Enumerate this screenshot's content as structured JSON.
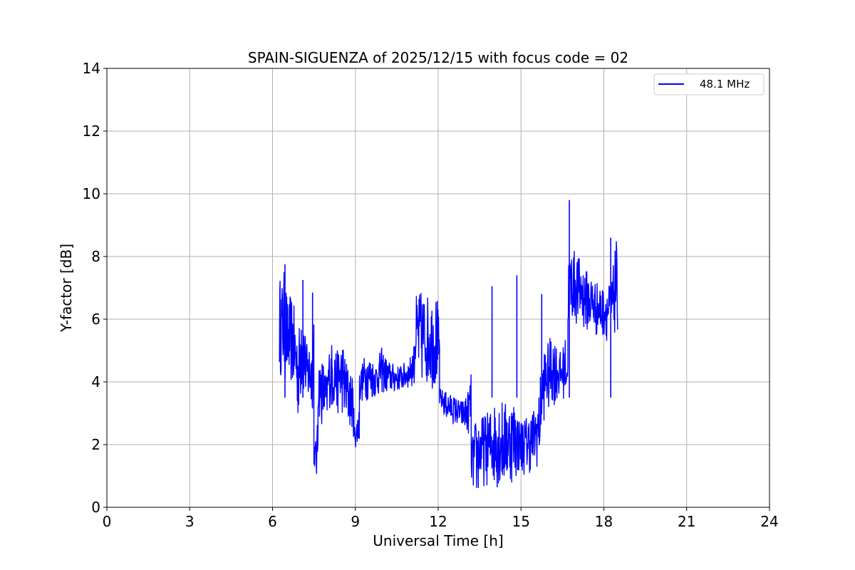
{
  "chart_data": {
    "type": "line",
    "title": "SPAIN-SIGUENZA of 2025/12/15 with focus code = 02",
    "xlabel": "Universal Time [h]",
    "ylabel": "Y-factor [dB]",
    "xlim": [
      0,
      24
    ],
    "ylim": [
      0,
      14
    ],
    "x_ticks": [
      0,
      3,
      6,
      9,
      12,
      15,
      18,
      21,
      24
    ],
    "y_ticks": [
      0,
      2,
      4,
      6,
      8,
      10,
      12,
      14
    ],
    "grid": true,
    "legend_position": "top-right",
    "series": [
      {
        "name": "48.1 MHz",
        "color": "#0000ff",
        "segments": [
          {
            "x": [
              6.25,
              6.35,
              6.45,
              6.55,
              6.65,
              6.75,
              6.85,
              6.95,
              7.05,
              7.15,
              7.25,
              7.35,
              7.45,
              7.5
            ],
            "low": [
              4.2,
              4.1,
              3.9,
              3.8,
              3.9,
              3.6,
              3.2,
              2.6,
              3.4,
              3.5,
              3.2,
              3.0,
              3.1,
              3.3
            ],
            "high": [
              7.4,
              7.2,
              7.7,
              6.5,
              6.8,
              6.6,
              6.0,
              5.5,
              7.3,
              5.9,
              5.2,
              5.4,
              5.1,
              6.9
            ]
          },
          {
            "x": [
              7.5,
              7.55,
              7.6,
              7.65
            ],
            "low": [
              1.3,
              1.2,
              0.7,
              1.4
            ],
            "high": [
              2.0,
              2.1,
              2.4,
              3.0
            ]
          },
          {
            "x": [
              7.65,
              7.75,
              7.85,
              7.95,
              8.05,
              8.15,
              8.25,
              8.35,
              8.45,
              8.55,
              8.65,
              8.75,
              8.85,
              8.95
            ],
            "low": [
              3.0,
              2.6,
              2.5,
              2.4,
              3.2,
              3.0,
              3.1,
              2.9,
              3.0,
              2.9,
              2.5,
              2.4,
              2.5,
              2.2
            ],
            "high": [
              4.6,
              4.8,
              4.7,
              4.2,
              5.1,
              5.3,
              5.2,
              5.0,
              5.2,
              5.3,
              4.8,
              4.5,
              4.3,
              3.9
            ]
          },
          {
            "x": [
              8.95,
              9.05,
              9.15
            ],
            "low": [
              1.9,
              1.85,
              2.0
            ],
            "high": [
              2.6,
              2.8,
              3.6
            ]
          },
          {
            "x": [
              9.15,
              9.35,
              9.55,
              9.75,
              9.95,
              10.15,
              10.35,
              10.55,
              10.75,
              10.95,
              11.15
            ],
            "low": [
              3.3,
              3.4,
              3.4,
              3.5,
              3.6,
              3.6,
              3.6,
              3.7,
              3.7,
              3.8,
              3.9
            ],
            "high": [
              4.3,
              4.9,
              4.8,
              4.6,
              5.1,
              4.7,
              4.6,
              4.5,
              4.6,
              4.7,
              5.3
            ]
          },
          {
            "x": [
              11.15,
              11.35,
              11.55,
              11.75,
              11.95,
              12.05
            ],
            "low": [
              3.9,
              3.8,
              3.9,
              3.8,
              3.7,
              3.7
            ],
            "high": [
              6.7,
              6.9,
              6.8,
              6.7,
              6.8,
              5.8
            ]
          },
          {
            "x": [
              12.05,
              12.25,
              12.45,
              12.65,
              12.85,
              13.05,
              13.2
            ],
            "low": [
              3.2,
              2.8,
              2.7,
              2.6,
              2.5,
              2.3,
              2.4
            ],
            "high": [
              3.8,
              3.7,
              3.6,
              3.5,
              3.4,
              3.6,
              4.3
            ]
          },
          {
            "x": [
              13.2,
              13.35,
              13.55,
              13.75,
              13.95,
              14.15,
              14.35,
              14.55,
              14.75,
              14.95,
              15.15,
              15.35,
              15.55,
              15.7
            ],
            "low": [
              0.8,
              0.1,
              0.6,
              0.7,
              0.6,
              0.6,
              0.5,
              0.8,
              0.7,
              1.1,
              1.0,
              1.1,
              1.2,
              1.5
            ],
            "high": [
              2.1,
              2.8,
              2.9,
              3.0,
              3.2,
              3.6,
              3.4,
              3.3,
              3.5,
              2.8,
              2.9,
              3.0,
              3.3,
              3.8
            ]
          },
          {
            "x": [
              15.7,
              15.85,
              16.0,
              16.15,
              16.3,
              16.45,
              16.6,
              16.7
            ],
            "low": [
              2.2,
              2.8,
              3.0,
              3.2,
              3.3,
              3.4,
              3.5,
              3.6
            ],
            "high": [
              4.2,
              5.1,
              5.3,
              5.6,
              5.2,
              4.9,
              5.4,
              4.7
            ]
          },
          {
            "x": [
              16.7,
              16.85,
              17.0,
              17.15,
              17.35,
              17.55,
              17.75,
              17.95,
              18.15,
              18.3,
              18.45,
              18.5
            ],
            "low": [
              5.6,
              5.9,
              5.8,
              5.7,
              5.6,
              5.5,
              5.4,
              5.4,
              5.3,
              5.4,
              5.5,
              5.6
            ],
            "high": [
              7.9,
              8.3,
              8.1,
              7.9,
              7.6,
              7.4,
              7.2,
              7.0,
              7.1,
              7.3,
              8.7,
              7.0
            ]
          }
        ],
        "spikes": [
          {
            "x": 6.45,
            "y": 7.75
          },
          {
            "x": 7.1,
            "y": 7.25
          },
          {
            "x": 7.45,
            "y": 6.85
          },
          {
            "x": 13.95,
            "y": 7.05
          },
          {
            "x": 14.85,
            "y": 7.4
          },
          {
            "x": 15.75,
            "y": 6.8
          },
          {
            "x": 16.75,
            "y": 9.8
          },
          {
            "x": 18.25,
            "y": 8.6
          }
        ]
      }
    ]
  }
}
